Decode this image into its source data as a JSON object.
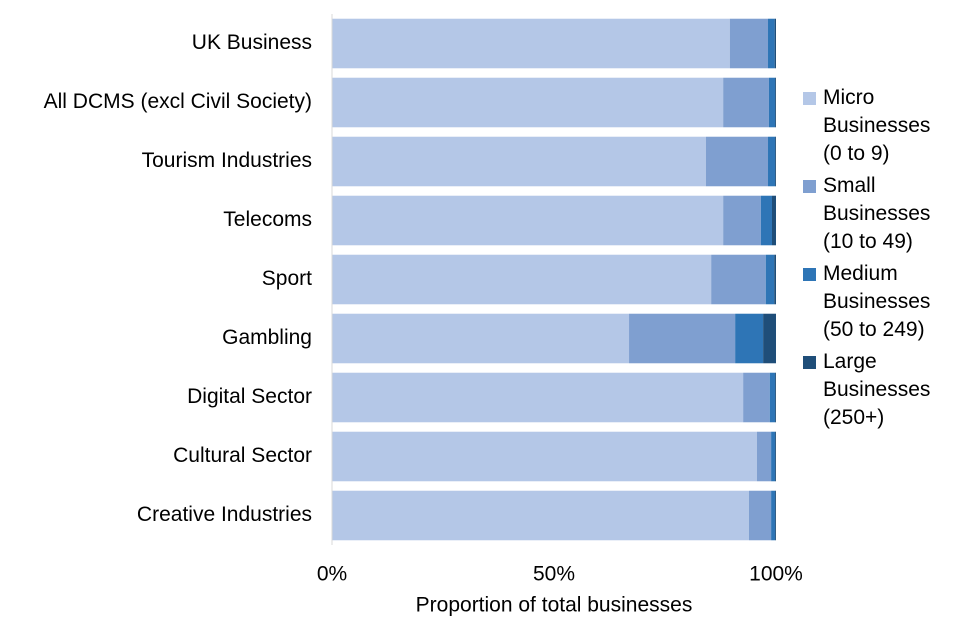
{
  "chart_data": {
    "type": "stacked-barh",
    "xlabel": "Proportion of total businesses",
    "categories": [
      "UK Business",
      "All DCMS (excl Civil Society)",
      "Tourism Industries",
      "Telecoms",
      "Sport",
      "Gambling",
      "Digital Sector",
      "Cultural Sector",
      "Creative Industries"
    ],
    "series": [
      {
        "name": "Micro Businesses (0 to 9)",
        "color": "#b4c7e7",
        "values": [
          89.6,
          88.1,
          84.2,
          88.1,
          85.4,
          66.9,
          92.6,
          95.7,
          93.9
        ]
      },
      {
        "name": "Small Businesses (10 to 49)",
        "color": "#7f9fd0",
        "values": [
          8.6,
          10.3,
          14.0,
          8.5,
          12.3,
          23.9,
          6.0,
          3.2,
          5.0
        ]
      },
      {
        "name": "Medium Businesses (50 to 249)",
        "color": "#2e75b6",
        "values": [
          1.5,
          1.4,
          1.6,
          2.5,
          1.9,
          6.3,
          1.2,
          0.9,
          0.9
        ]
      },
      {
        "name": "Large Businesses (250+)",
        "color": "#1f4e79",
        "values": [
          0.3,
          0.2,
          0.2,
          0.9,
          0.4,
          2.9,
          0.2,
          0.2,
          0.2
        ]
      }
    ],
    "xlim": [
      0,
      100
    ],
    "xticks": [
      {
        "value": 0,
        "label": "0%"
      },
      {
        "value": 50,
        "label": "50%"
      },
      {
        "value": 100,
        "label": "100%"
      }
    ],
    "legend": "right"
  }
}
